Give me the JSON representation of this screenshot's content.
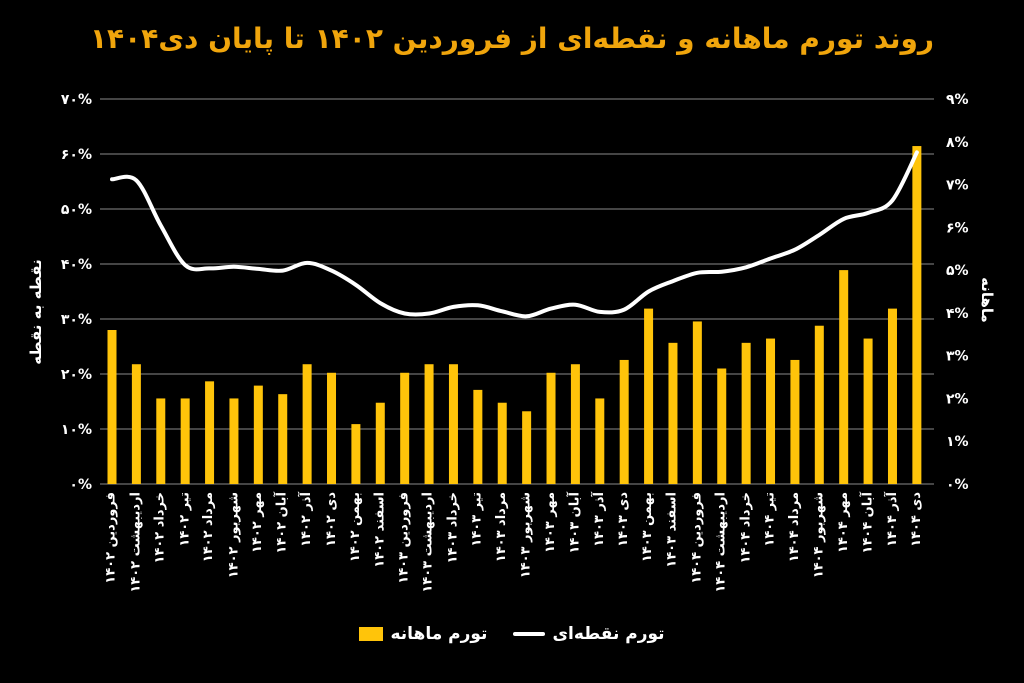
{
  "title": "روند تورم ماهانه و نقطه‌ای از فروردین ۱۴۰۲ تا پایان دی۱۴۰۴",
  "colors": {
    "background": "#000000",
    "title": "#F0A50C",
    "bar": "#FFC40A",
    "line": "#FFFFFF",
    "grid": "#8A8A8A",
    "text": "#FFFFFF"
  },
  "left_axis": {
    "title": "نقطه به نقطه",
    "ticks": [
      "۰%",
      "۱۰%",
      "۲۰%",
      "۳۰%",
      "۴۰%",
      "۵۰%",
      "۶۰%",
      "۷۰%"
    ]
  },
  "right_axis": {
    "title": "ماهانه",
    "ticks": [
      "۰%",
      "۱%",
      "۲%",
      "۳%",
      "۴%",
      "۵%",
      "۶%",
      "۷%",
      "۸%",
      "۹%"
    ]
  },
  "legend": {
    "monthly_label": "تورم ماهانه",
    "point_label": "تورم نقطه‌ای"
  },
  "chart_data": {
    "type": "bar+line",
    "title": "روند تورم ماهانه و نقطه‌ای از فروردین ۱۴۰۲ تا پایان دی۱۴۰۴",
    "grid": true,
    "legend_position": "bottom",
    "left_ylim": [
      0,
      70
    ],
    "left_ticks_pct": [
      0,
      10,
      20,
      30,
      40,
      50,
      60,
      70
    ],
    "right_ylim": [
      0,
      9
    ],
    "right_ticks_pct": [
      0,
      1,
      2,
      3,
      4,
      5,
      6,
      7,
      8,
      9
    ],
    "categories": [
      "فروردین ۱۴۰۲",
      "اردیبهشت ۱۴۰۲",
      "خرداد ۱۴۰۲",
      "تیر ۱۴۰۲",
      "مرداد ۱۴۰۲",
      "شهریور ۱۴۰۲",
      "مهر ۱۴۰۲",
      "آبان ۱۴۰۲",
      "آذر ۱۴۰۲",
      "دی ۱۴۰۲",
      "بهمن ۱۴۰۲",
      "اسفند ۱۴۰۲",
      "فروردین ۱۴۰۳",
      "اردیبهشت ۱۴۰۳",
      "خرداد ۱۴۰۳",
      "تیر ۱۴۰۳",
      "مرداد ۱۴۰۳",
      "شهریور ۱۴۰۳",
      "مهر ۱۴۰۳",
      "آبان ۱۴۰۳",
      "آذر ۱۴۰۳",
      "دی ۱۴۰۳",
      "بهمن ۱۴۰۳",
      "اسفند ۱۴۰۳",
      "فروردین ۱۴۰۴",
      "اردیبهشت ۱۴۰۴",
      "خرداد ۱۴۰۴",
      "تیر ۱۴۰۴",
      "مرداد ۱۴۰۴",
      "شهریور ۱۴۰۴",
      "مهر ۱۴۰۴",
      "آبان ۱۴۰۴",
      "آذر ۱۴۰۴",
      "دی ۱۴۰۴"
    ],
    "series": [
      {
        "name": "تورم ماهانه",
        "type": "bar",
        "axis": "right",
        "values": [
          3.6,
          2.8,
          2.0,
          2.0,
          2.4,
          2.0,
          2.3,
          2.1,
          2.8,
          2.6,
          1.4,
          1.9,
          2.6,
          2.8,
          2.8,
          2.2,
          1.9,
          1.7,
          2.6,
          2.8,
          2.0,
          2.9,
          4.1,
          3.3,
          3.8,
          2.7,
          3.3,
          3.4,
          2.9,
          3.7,
          5.0,
          3.4,
          4.1,
          7.9
        ]
      },
      {
        "name": "تورم نقطه‌ای",
        "type": "line",
        "axis": "left",
        "values": [
          55.4,
          55.2,
          47.0,
          39.8,
          39.2,
          39.5,
          39.1,
          38.8,
          40.2,
          38.8,
          36.2,
          32.9,
          31.0,
          31.0,
          32.2,
          32.5,
          31.4,
          30.5,
          31.9,
          32.6,
          31.3,
          31.7,
          35.0,
          36.9,
          38.4,
          38.6,
          39.4,
          41.0,
          42.6,
          45.3,
          48.2,
          49.3,
          51.6,
          60.3
        ]
      }
    ]
  }
}
